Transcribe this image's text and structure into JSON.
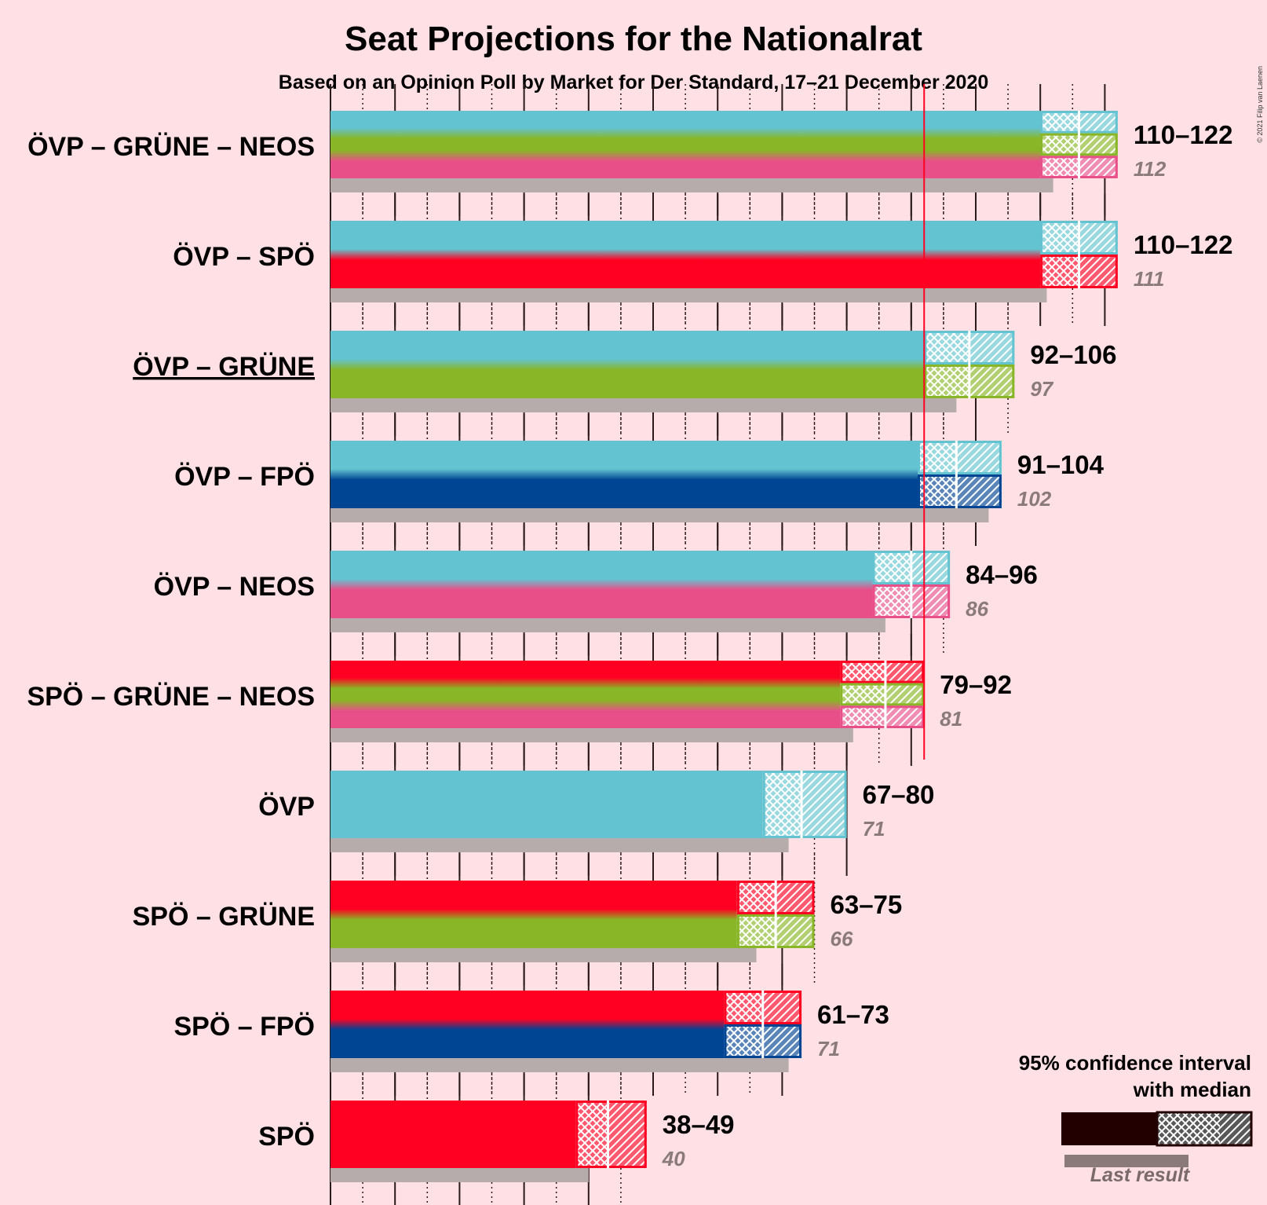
{
  "title": "Seat Projections for the Nationalrat",
  "subtitle": "Based on an Opinion Poll by Market for Der Standard, 17–21 December 2020",
  "copyright": "© 2021 Filip van Laenen",
  "legend": {
    "title_line1": "95% confidence interval",
    "title_line2": "with median",
    "last_result": "Last result"
  },
  "colors": {
    "OVP": "#63C3D0",
    "SPO": "#FF0022",
    "GRUNE": "#88B626",
    "NEOS": "#E84F89",
    "FPO": "#004494",
    "last_result": "#B6ACAC",
    "majority_line": "#FF0022",
    "background": "#FFE0E4"
  },
  "chart_data": {
    "type": "bar",
    "x_axis": {
      "min": 0,
      "max": 122,
      "major_tick_every": 10,
      "minor_tick_every": 5
    },
    "majority_threshold": 92,
    "rows": [
      {
        "label": "ÖVP – GRÜNE – NEOS",
        "parties": [
          "OVP",
          "GRUNE",
          "NEOS"
        ],
        "ci_low": 110,
        "median": 116,
        "ci_high": 122,
        "range_label": "110–122",
        "last_result": 112,
        "last_label": "112",
        "underlined": false
      },
      {
        "label": "ÖVP – SPÖ",
        "parties": [
          "OVP",
          "SPO"
        ],
        "ci_low": 110,
        "median": 116,
        "ci_high": 122,
        "range_label": "110–122",
        "last_result": 111,
        "last_label": "111",
        "underlined": false
      },
      {
        "label": "ÖVP – GRÜNE",
        "parties": [
          "OVP",
          "GRUNE"
        ],
        "ci_low": 92,
        "median": 99,
        "ci_high": 106,
        "range_label": "92–106",
        "last_result": 97,
        "last_label": "97",
        "underlined": true
      },
      {
        "label": "ÖVP – FPÖ",
        "parties": [
          "OVP",
          "FPO"
        ],
        "ci_low": 91,
        "median": 97,
        "ci_high": 104,
        "range_label": "91–104",
        "last_result": 102,
        "last_label": "102",
        "underlined": false
      },
      {
        "label": "ÖVP – NEOS",
        "parties": [
          "OVP",
          "NEOS"
        ],
        "ci_low": 84,
        "median": 90,
        "ci_high": 96,
        "range_label": "84–96",
        "last_result": 86,
        "last_label": "86",
        "underlined": false
      },
      {
        "label": "SPÖ – GRÜNE – NEOS",
        "parties": [
          "SPO",
          "GRUNE",
          "NEOS"
        ],
        "ci_low": 79,
        "median": 86,
        "ci_high": 92,
        "range_label": "79–92",
        "last_result": 81,
        "last_label": "81",
        "underlined": false
      },
      {
        "label": "ÖVP",
        "parties": [
          "OVP"
        ],
        "ci_low": 67,
        "median": 73,
        "ci_high": 80,
        "range_label": "67–80",
        "last_result": 71,
        "last_label": "71",
        "underlined": false
      },
      {
        "label": "SPÖ – GRÜNE",
        "parties": [
          "SPO",
          "GRUNE"
        ],
        "ci_low": 63,
        "median": 69,
        "ci_high": 75,
        "range_label": "63–75",
        "last_result": 66,
        "last_label": "66",
        "underlined": false
      },
      {
        "label": "SPÖ – FPÖ",
        "parties": [
          "SPO",
          "FPO"
        ],
        "ci_low": 61,
        "median": 67,
        "ci_high": 73,
        "range_label": "61–73",
        "last_result": 71,
        "last_label": "71",
        "underlined": false
      },
      {
        "label": "SPÖ",
        "parties": [
          "SPO"
        ],
        "ci_low": 38,
        "median": 43,
        "ci_high": 49,
        "range_label": "38–49",
        "last_result": 40,
        "last_label": "40",
        "underlined": false
      }
    ]
  }
}
